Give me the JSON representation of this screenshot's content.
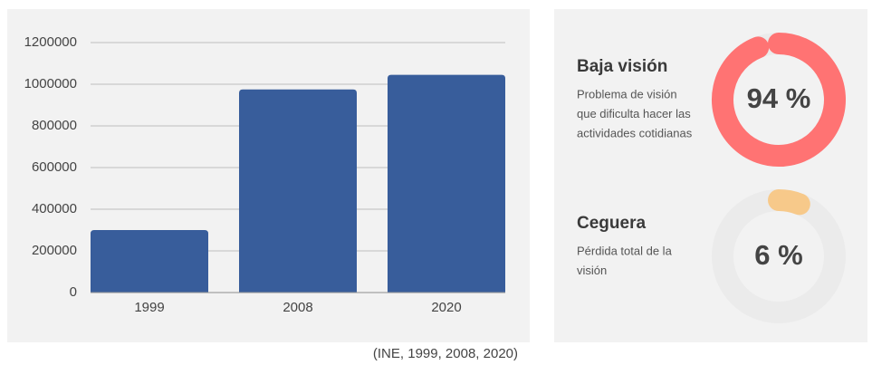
{
  "chart_data": [
    {
      "type": "bar",
      "categories": [
        "1999",
        "2008",
        "2020"
      ],
      "values": [
        300000,
        975000,
        1045000
      ],
      "color": "#385d9b",
      "ylim": [
        0,
        1200000
      ],
      "yticks": [
        0,
        200000,
        400000,
        600000,
        800000,
        1000000,
        1200000
      ],
      "grid": true,
      "note": "(INE, 1999, 2008, 2020)"
    },
    {
      "type": "donut",
      "title": "Baja visión",
      "description": [
        "Problema de visión",
        "que dificulta hacer las",
        "actividades cotidianas"
      ],
      "values": [
        94
      ],
      "value_labels": [
        "94 %"
      ],
      "color": "#ff7373",
      "track_color": "#ebebeb",
      "ylim": [
        0,
        100
      ]
    },
    {
      "type": "donut",
      "title": "Ceguera",
      "description": [
        "Pérdida total de la",
        "visión"
      ],
      "values": [
        6
      ],
      "value_labels": [
        "6 %"
      ],
      "color": "#f7c98a",
      "track_color": "#ebebeb",
      "ylim": [
        0,
        100
      ]
    }
  ]
}
